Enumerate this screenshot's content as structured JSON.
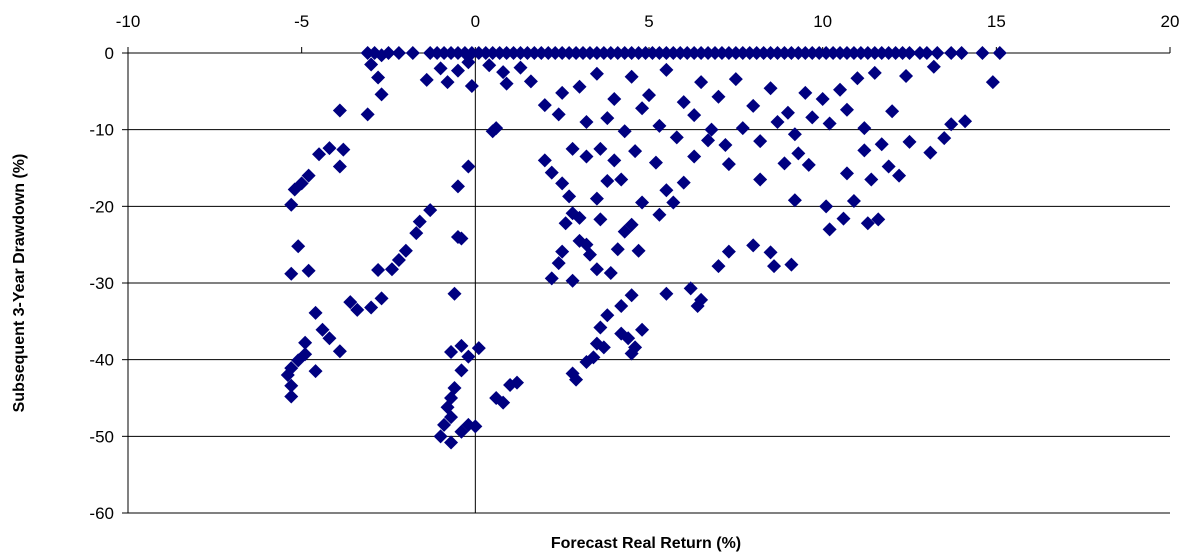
{
  "chart_data": {
    "type": "scatter",
    "xlabel": "Forecast Real Return (%)",
    "ylabel": "Subsequent 3-Year Drawdown (%)",
    "xlim": [
      -10,
      20
    ],
    "ylim": [
      -60,
      0
    ],
    "x_ticks": [
      -10,
      -5,
      0,
      5,
      10,
      15,
      20
    ],
    "y_ticks": [
      0,
      -10,
      -20,
      -30,
      -40,
      -50,
      -60
    ],
    "x_axis_position": "top",
    "grid": "horizontal",
    "legend": "none",
    "marker": "diamond",
    "colors": {
      "marker": "#000080",
      "grid": "#000000",
      "axis": "#000000"
    },
    "points": [
      [
        -3.1,
        0
      ],
      [
        -2.9,
        0
      ],
      [
        -2.7,
        -0.3
      ],
      [
        -2.5,
        0
      ],
      [
        -2.2,
        0
      ],
      [
        -1.8,
        0
      ],
      [
        -1.3,
        0
      ],
      [
        -1.1,
        0
      ],
      [
        -0.9,
        0
      ],
      [
        -0.7,
        0
      ],
      [
        -0.5,
        0
      ],
      [
        -0.3,
        0
      ],
      [
        -0.1,
        0
      ],
      [
        0.1,
        0
      ],
      [
        0.3,
        0
      ],
      [
        0.5,
        0
      ],
      [
        0.7,
        0
      ],
      [
        0.9,
        0
      ],
      [
        1.1,
        0
      ],
      [
        1.3,
        0
      ],
      [
        1.5,
        0
      ],
      [
        1.7,
        0
      ],
      [
        1.9,
        0
      ],
      [
        2.1,
        0
      ],
      [
        2.3,
        0
      ],
      [
        2.5,
        0
      ],
      [
        2.7,
        0
      ],
      [
        2.9,
        0
      ],
      [
        3.1,
        0
      ],
      [
        3.3,
        0
      ],
      [
        3.5,
        0
      ],
      [
        3.7,
        0
      ],
      [
        3.9,
        0
      ],
      [
        4.1,
        0
      ],
      [
        4.3,
        0
      ],
      [
        4.5,
        0
      ],
      [
        4.7,
        0
      ],
      [
        4.9,
        0
      ],
      [
        5.1,
        0
      ],
      [
        5.3,
        0
      ],
      [
        5.5,
        0
      ],
      [
        5.7,
        0
      ],
      [
        5.9,
        0
      ],
      [
        6.1,
        0
      ],
      [
        6.3,
        0
      ],
      [
        6.5,
        0
      ],
      [
        6.7,
        0
      ],
      [
        6.9,
        0
      ],
      [
        7.1,
        0
      ],
      [
        7.3,
        0
      ],
      [
        7.5,
        0
      ],
      [
        7.7,
        0
      ],
      [
        7.9,
        0
      ],
      [
        8.1,
        0
      ],
      [
        8.3,
        0
      ],
      [
        8.5,
        0
      ],
      [
        8.7,
        0
      ],
      [
        8.9,
        0
      ],
      [
        9.1,
        0
      ],
      [
        9.3,
        0
      ],
      [
        9.5,
        0
      ],
      [
        9.7,
        0
      ],
      [
        9.9,
        0
      ],
      [
        10.1,
        0
      ],
      [
        10.3,
        0
      ],
      [
        10.5,
        0
      ],
      [
        10.7,
        0
      ],
      [
        10.9,
        0
      ],
      [
        11.1,
        0
      ],
      [
        11.3,
        0
      ],
      [
        11.5,
        0
      ],
      [
        11.7,
        0
      ],
      [
        11.9,
        0
      ],
      [
        12.1,
        0
      ],
      [
        12.3,
        0
      ],
      [
        12.5,
        0
      ],
      [
        12.8,
        0
      ],
      [
        13.0,
        0
      ],
      [
        13.3,
        0
      ],
      [
        13.7,
        0
      ],
      [
        14.0,
        0
      ],
      [
        14.6,
        0
      ],
      [
        15.1,
        0
      ],
      [
        -3.0,
        -1.5
      ],
      [
        -2.8,
        -3.2
      ],
      [
        -2.7,
        -5.4
      ],
      [
        -1.4,
        -3.5
      ],
      [
        -1.0,
        -2.0
      ],
      [
        -0.8,
        -3.8
      ],
      [
        -0.5,
        -2.3
      ],
      [
        -0.2,
        -1.2
      ],
      [
        -0.1,
        -4.3
      ],
      [
        0.4,
        -1.6
      ],
      [
        0.8,
        -2.5
      ],
      [
        0.9,
        -4.0
      ],
      [
        1.3,
        -1.9
      ],
      [
        1.6,
        -3.7
      ],
      [
        2.0,
        -6.8
      ],
      [
        2.5,
        -5.2
      ],
      [
        3.0,
        -4.4
      ],
      [
        3.5,
        -2.7
      ],
      [
        4.0,
        -6.0
      ],
      [
        4.5,
        -3.1
      ],
      [
        5.0,
        -5.5
      ],
      [
        5.5,
        -2.2
      ],
      [
        6.0,
        -6.4
      ],
      [
        6.5,
        -3.8
      ],
      [
        7.0,
        -5.7
      ],
      [
        7.5,
        -3.4
      ],
      [
        8.0,
        -6.9
      ],
      [
        8.5,
        -4.6
      ],
      [
        9.0,
        -7.8
      ],
      [
        9.5,
        -5.2
      ],
      [
        10.0,
        -6.0
      ],
      [
        10.5,
        -4.8
      ],
      [
        11.0,
        -3.3
      ],
      [
        11.5,
        -2.6
      ],
      [
        12.0,
        -7.6
      ],
      [
        12.4,
        -3.0
      ],
      [
        13.2,
        -1.8
      ],
      [
        14.9,
        -3.8
      ],
      [
        3.2,
        -9.0
      ],
      [
        3.8,
        -8.5
      ],
      [
        4.3,
        -10.2
      ],
      [
        4.8,
        -7.2
      ],
      [
        5.3,
        -9.5
      ],
      [
        5.8,
        -11.0
      ],
      [
        6.3,
        -8.1
      ],
      [
        6.8,
        -10.0
      ],
      [
        7.2,
        -12.0
      ],
      [
        7.7,
        -9.8
      ],
      [
        8.2,
        -11.5
      ],
      [
        8.7,
        -9.0
      ],
      [
        9.2,
        -10.6
      ],
      [
        9.7,
        -8.4
      ],
      [
        10.2,
        -9.2
      ],
      [
        10.7,
        -7.4
      ],
      [
        11.2,
        -9.8
      ],
      [
        11.7,
        -11.9
      ],
      [
        2.4,
        -8.0
      ],
      [
        2.8,
        -12.5
      ],
      [
        0.5,
        -10.2
      ],
      [
        0.6,
        -9.8
      ],
      [
        -3.9,
        -7.5
      ],
      [
        -3.1,
        -8.0
      ],
      [
        -3.8,
        -12.6
      ],
      [
        -4.2,
        -12.4
      ],
      [
        -4.5,
        -13.2
      ],
      [
        -3.9,
        -14.8
      ],
      [
        -4.8,
        -16.0
      ],
      [
        -5.0,
        -17.0
      ],
      [
        -5.2,
        -17.8
      ],
      [
        -5.3,
        -19.8
      ],
      [
        -1.3,
        -20.5
      ],
      [
        -1.6,
        -22.0
      ],
      [
        -1.7,
        -23.5
      ],
      [
        -2.0,
        -25.8
      ],
      [
        -2.2,
        -27.0
      ],
      [
        -2.4,
        -28.2
      ],
      [
        -0.5,
        -17.4
      ],
      [
        -0.2,
        -14.8
      ],
      [
        -0.5,
        -24.0
      ],
      [
        -0.4,
        -24.2
      ],
      [
        -5.1,
        -25.2
      ],
      [
        -5.3,
        -28.8
      ],
      [
        -4.8,
        -28.4
      ],
      [
        -2.8,
        -28.3
      ],
      [
        -0.6,
        -31.4
      ],
      [
        -3.6,
        -32.5
      ],
      [
        -3.4,
        -33.5
      ],
      [
        -3.0,
        -33.2
      ],
      [
        -2.7,
        -32.0
      ],
      [
        -4.6,
        -33.9
      ],
      [
        -4.4,
        -36.1
      ],
      [
        -4.2,
        -37.2
      ],
      [
        -3.9,
        -38.9
      ],
      [
        -4.9,
        -39.3
      ],
      [
        -5.1,
        -40.1
      ],
      [
        -5.3,
        -41.1
      ],
      [
        -5.4,
        -42.0
      ],
      [
        -5.3,
        -43.4
      ],
      [
        -5.3,
        -44.8
      ],
      [
        -4.6,
        -41.5
      ],
      [
        -4.9,
        -37.8
      ],
      [
        -0.7,
        -39.0
      ],
      [
        -0.4,
        -38.2
      ],
      [
        0.1,
        -38.5
      ],
      [
        -0.2,
        -39.6
      ],
      [
        -0.4,
        -41.4
      ],
      [
        -0.6,
        -43.7
      ],
      [
        -0.7,
        -45.0
      ],
      [
        -0.8,
        -46.2
      ],
      [
        -0.7,
        -47.5
      ],
      [
        -0.9,
        -48.5
      ],
      [
        -1.0,
        -50.0
      ],
      [
        -0.7,
        -50.8
      ],
      [
        -0.4,
        -49.4
      ],
      [
        -0.2,
        -48.5
      ],
      [
        0.0,
        -48.7
      ],
      [
        0.6,
        -45.0
      ],
      [
        0.8,
        -45.6
      ],
      [
        1.0,
        -43.3
      ],
      [
        1.2,
        -43.0
      ],
      [
        2.0,
        -14.0
      ],
      [
        2.2,
        -15.6
      ],
      [
        2.5,
        -17.0
      ],
      [
        2.7,
        -18.7
      ],
      [
        2.8,
        -20.9
      ],
      [
        2.6,
        -22.2
      ],
      [
        3.0,
        -24.5
      ],
      [
        2.5,
        -25.9
      ],
      [
        2.4,
        -27.4
      ],
      [
        2.2,
        -29.4
      ],
      [
        2.8,
        -29.7
      ],
      [
        3.3,
        -26.3
      ],
      [
        3.5,
        -28.2
      ],
      [
        3.2,
        -25.0
      ],
      [
        3.0,
        -21.5
      ],
      [
        3.5,
        -19.0
      ],
      [
        3.8,
        -16.7
      ],
      [
        4.0,
        -14.0
      ],
      [
        3.6,
        -12.5
      ],
      [
        3.2,
        -13.5
      ],
      [
        4.2,
        -16.5
      ],
      [
        4.6,
        -12.8
      ],
      [
        5.2,
        -14.3
      ],
      [
        5.5,
        -17.9
      ],
      [
        5.3,
        -21.1
      ],
      [
        5.7,
        -19.5
      ],
      [
        6.0,
        -16.9
      ],
      [
        6.3,
        -13.5
      ],
      [
        6.7,
        -11.4
      ],
      [
        7.3,
        -14.5
      ],
      [
        4.5,
        -22.4
      ],
      [
        4.8,
        -19.5
      ],
      [
        4.1,
        -25.6
      ],
      [
        4.3,
        -23.3
      ],
      [
        3.6,
        -21.7
      ],
      [
        3.9,
        -28.7
      ],
      [
        4.7,
        -25.8
      ],
      [
        2.8,
        -41.8
      ],
      [
        2.9,
        -42.6
      ],
      [
        3.2,
        -40.3
      ],
      [
        3.5,
        -37.9
      ],
      [
        3.6,
        -35.8
      ],
      [
        3.8,
        -34.2
      ],
      [
        4.2,
        -33.0
      ],
      [
        4.5,
        -31.6
      ],
      [
        3.4,
        -39.7
      ],
      [
        3.7,
        -38.4
      ],
      [
        4.2,
        -36.6
      ],
      [
        4.4,
        -37.2
      ],
      [
        4.6,
        -38.4
      ],
      [
        4.8,
        -36.1
      ],
      [
        4.5,
        -39.2
      ],
      [
        5.5,
        -31.4
      ],
      [
        6.2,
        -30.7
      ],
      [
        6.5,
        -32.2
      ],
      [
        6.4,
        -33.0
      ],
      [
        7.0,
        -27.8
      ],
      [
        7.3,
        -25.9
      ],
      [
        8.0,
        -25.1
      ],
      [
        8.5,
        -26.0
      ],
      [
        8.6,
        -27.8
      ],
      [
        9.1,
        -27.6
      ],
      [
        8.2,
        -16.5
      ],
      [
        8.9,
        -14.4
      ],
      [
        9.3,
        -13.1
      ],
      [
        9.6,
        -14.6
      ],
      [
        9.2,
        -19.2
      ],
      [
        10.1,
        -20.0
      ],
      [
        10.6,
        -21.6
      ],
      [
        10.9,
        -19.3
      ],
      [
        11.3,
        -22.2
      ],
      [
        11.6,
        -21.7
      ],
      [
        10.2,
        -23.0
      ],
      [
        11.4,
        -16.5
      ],
      [
        10.7,
        -15.7
      ],
      [
        11.9,
        -14.8
      ],
      [
        12.2,
        -16.0
      ],
      [
        11.2,
        -12.7
      ],
      [
        12.5,
        -11.6
      ],
      [
        13.1,
        -13.0
      ],
      [
        13.5,
        -11.1
      ],
      [
        14.1,
        -8.9
      ],
      [
        13.7,
        -9.3
      ]
    ]
  }
}
